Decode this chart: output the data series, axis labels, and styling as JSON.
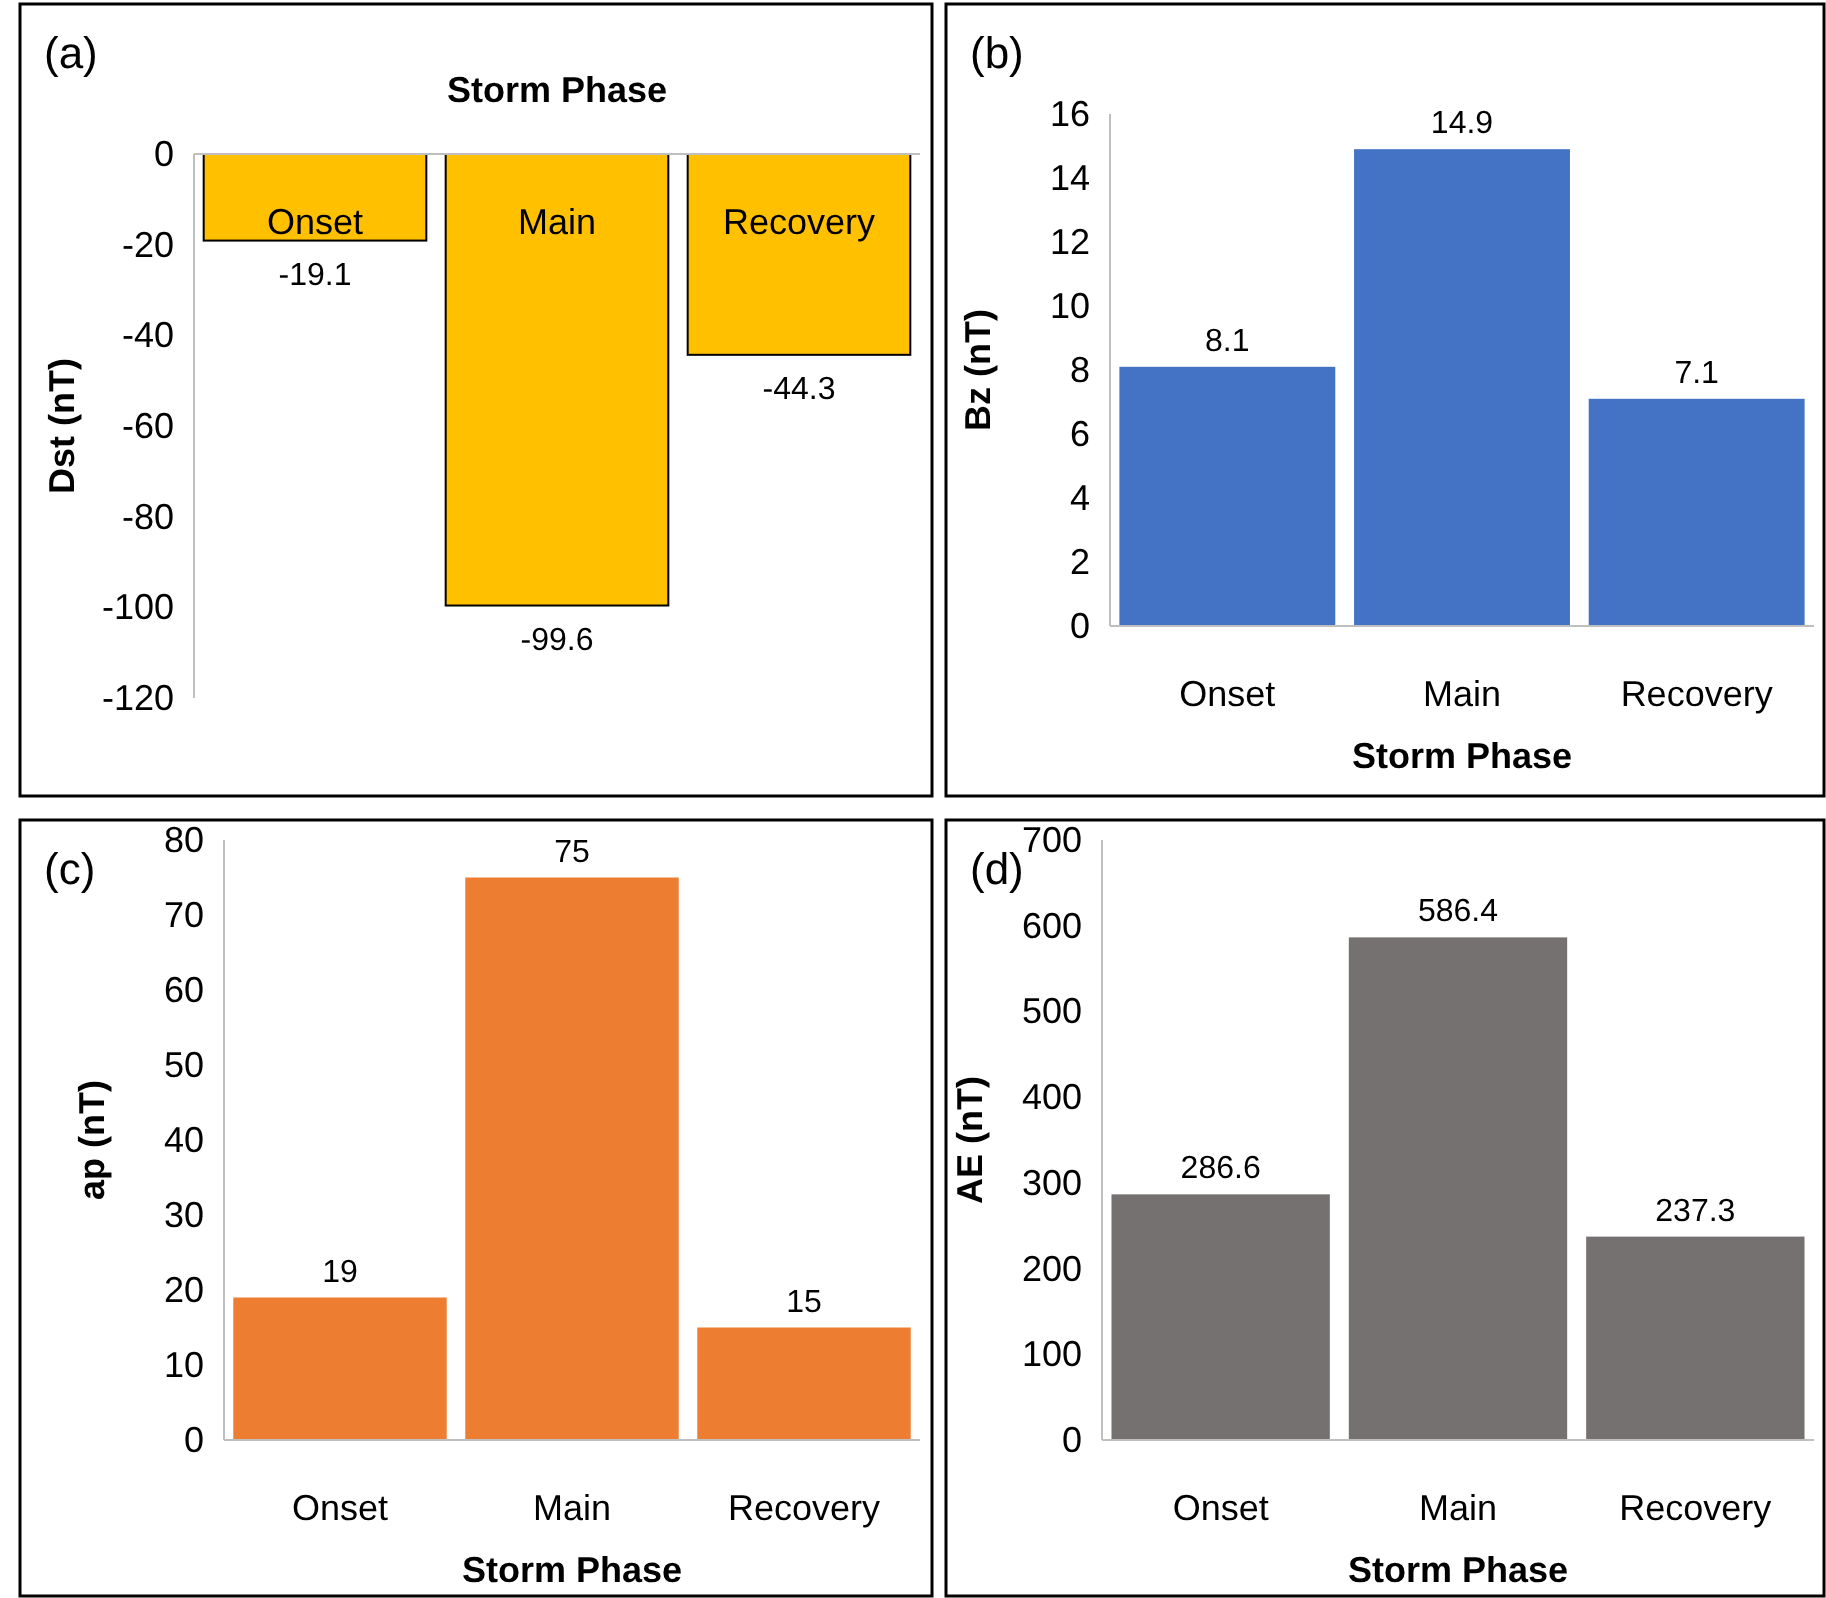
{
  "chart_data": [
    {
      "type": "bar",
      "xlabel": "Storm Phase",
      "ylabel": "Dst (nT)",
      "categories": [
        "Onset",
        "Main",
        "Recovery"
      ],
      "values": [
        -19.1,
        -99.6,
        -44.3
      ],
      "color": "#ffc000",
      "ylim": [
        -120,
        0
      ],
      "yticks": [
        -120,
        -100,
        -80,
        -60,
        -40,
        -20,
        0
      ],
      "data_labels": true,
      "annotations": [
        "(a)"
      ]
    },
    {
      "type": "bar",
      "xlabel": "Storm Phase",
      "ylabel": "Bz (nT)",
      "categories": [
        "Onset",
        "Main",
        "Recovery"
      ],
      "values": [
        8.1,
        14.9,
        7.1
      ],
      "color": "#4472c4",
      "ylim": [
        0,
        16
      ],
      "yticks": [
        0,
        2,
        4,
        6,
        8,
        10,
        12,
        14,
        16
      ],
      "data_labels": true,
      "annotations": [
        "(b)"
      ]
    },
    {
      "type": "bar",
      "xlabel": "Storm Phase",
      "ylabel": "ap (nT)",
      "categories": [
        "Onset",
        "Main",
        "Recovery"
      ],
      "values": [
        19,
        75,
        15
      ],
      "color": "#ed7d31",
      "ylim": [
        0,
        80
      ],
      "yticks": [
        0,
        10,
        20,
        30,
        40,
        50,
        60,
        70,
        80
      ],
      "data_labels": true,
      "annotations": [
        "(c)"
      ]
    },
    {
      "type": "bar",
      "xlabel": "Storm Phase",
      "ylabel": "AE (nT)",
      "categories": [
        "Onset",
        "Main",
        "Recovery"
      ],
      "values": [
        286.6,
        586.4,
        237.3
      ],
      "color": "#767171",
      "ylim": [
        0,
        700
      ],
      "yticks": [
        0,
        100,
        200,
        300,
        400,
        500,
        600,
        700
      ],
      "data_labels": true,
      "annotations": [
        "(d)"
      ]
    }
  ]
}
